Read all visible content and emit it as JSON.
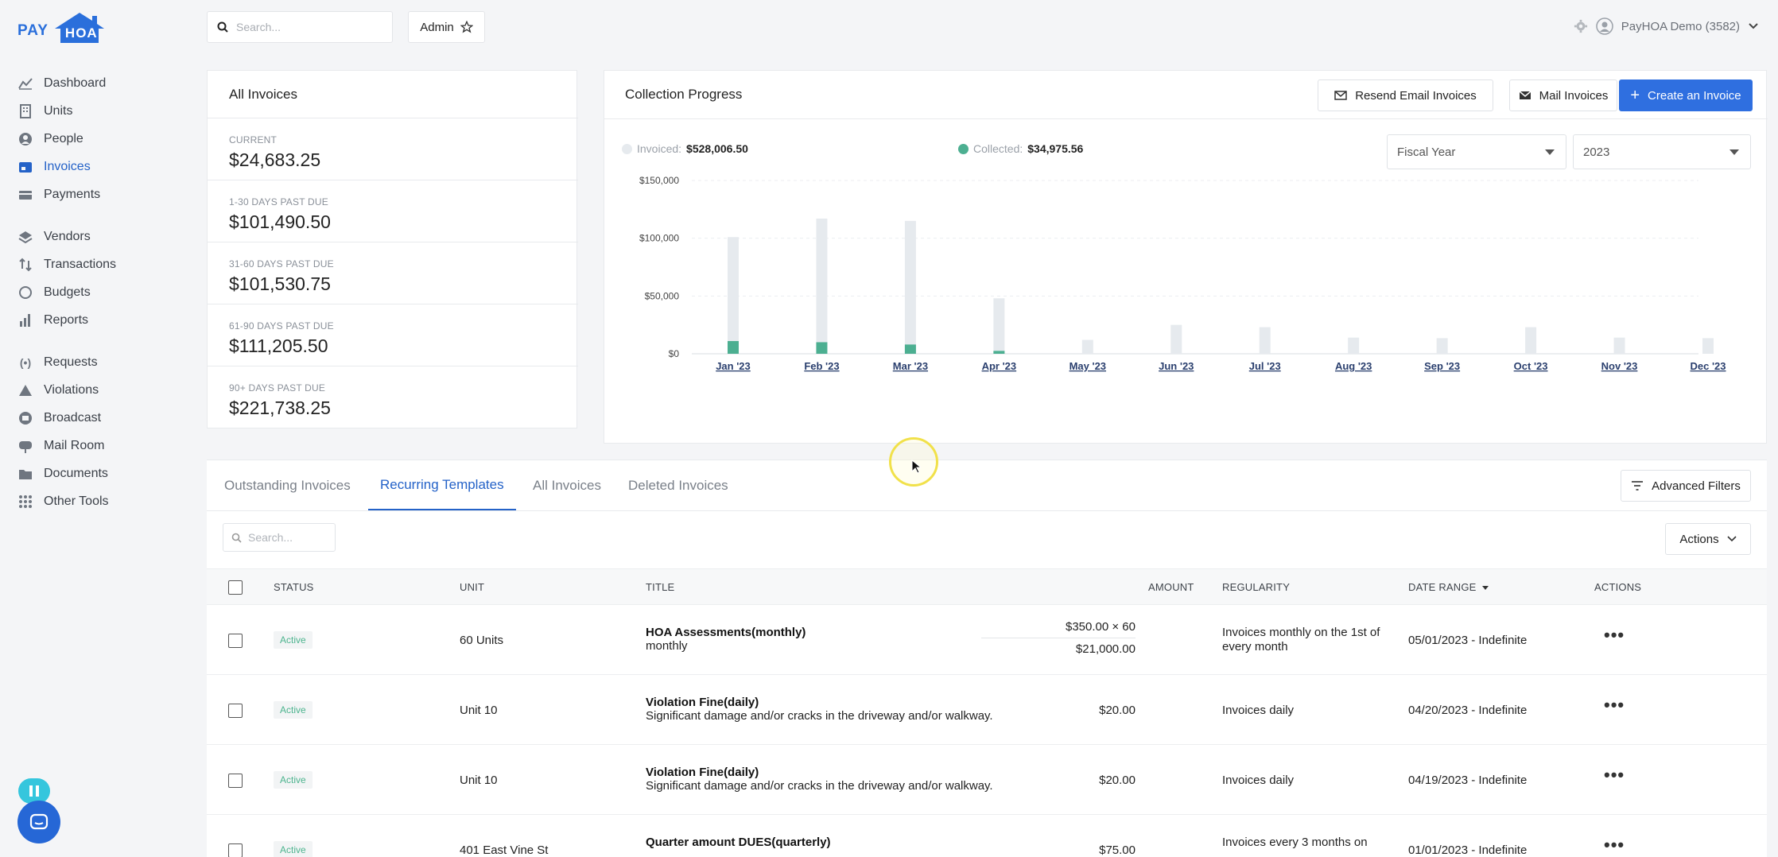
{
  "brand": {
    "pay": "PAY",
    "hoa": "HOA",
    "color": "#2a6fdb"
  },
  "sidebar": {
    "items": [
      {
        "label": "Dashboard",
        "icon": "dashboard-icon"
      },
      {
        "label": "Units",
        "icon": "building-icon"
      },
      {
        "label": "People",
        "icon": "person-icon"
      },
      {
        "label": "Invoices",
        "icon": "invoice-icon",
        "active": true
      },
      {
        "label": "Payments",
        "icon": "payments-icon"
      },
      {
        "label": "Vendors",
        "icon": "vendors-icon"
      },
      {
        "label": "Transactions",
        "icon": "transactions-icon"
      },
      {
        "label": "Budgets",
        "icon": "budgets-icon"
      },
      {
        "label": "Reports",
        "icon": "reports-icon"
      },
      {
        "label": "Requests",
        "icon": "requests-icon"
      },
      {
        "label": "Violations",
        "icon": "warning-icon"
      },
      {
        "label": "Broadcast",
        "icon": "broadcast-icon"
      },
      {
        "label": "Mail Room",
        "icon": "mailbox-icon"
      },
      {
        "label": "Documents",
        "icon": "folder-icon"
      },
      {
        "label": "Other Tools",
        "icon": "grid-icon"
      }
    ]
  },
  "topbar": {
    "search_placeholder": "Search...",
    "admin_label": "Admin",
    "account_label": "PayHOA Demo (3582)"
  },
  "all_invoices": {
    "title": "All Invoices",
    "rows": [
      {
        "label": "CURRENT",
        "value": "$24,683.25"
      },
      {
        "label": "1-30 DAYS PAST DUE",
        "value": "$101,490.50"
      },
      {
        "label": "31-60 DAYS PAST DUE",
        "value": "$101,530.75"
      },
      {
        "label": "61-90 DAYS PAST DUE",
        "value": "$111,205.50"
      },
      {
        "label": "90+ DAYS PAST DUE",
        "value": "$221,738.25"
      }
    ]
  },
  "collection": {
    "title": "Collection Progress",
    "resend_label": "Resend Email Invoices",
    "mail_label": "Mail Invoices",
    "create_label": "Create an Invoice",
    "invoiced_label": "Invoiced:",
    "invoiced_value": "$528,006.50",
    "collected_label": "Collected:",
    "collected_value": "$34,975.56",
    "period_select": "Fiscal Year",
    "year_select": "2023",
    "colors": {
      "invoiced": "#e6eaee",
      "collected": "#4caf91",
      "accent": "#2f6fe0"
    }
  },
  "chart_data": {
    "type": "bar",
    "categories": [
      "Jan '23",
      "Feb '23",
      "Mar '23",
      "Apr '23",
      "May '23",
      "Jun '23",
      "Jul '23",
      "Aug '23",
      "Sep '23",
      "Oct '23",
      "Nov '23",
      "Dec '23"
    ],
    "series": [
      {
        "name": "Invoiced",
        "values": [
          101000,
          117000,
          115000,
          48000,
          12000,
          25000,
          23000,
          14000,
          13500,
          23000,
          14000,
          13500
        ]
      },
      {
        "name": "Collected",
        "values": [
          11000,
          10000,
          8000,
          2500,
          0,
          0,
          0,
          0,
          0,
          0,
          0,
          0
        ]
      }
    ],
    "yticks": [
      "$150,000",
      "$100,000",
      "$50,000",
      "$0"
    ],
    "ylim": [
      0,
      150000
    ],
    "grid": true,
    "legend": "top-left"
  },
  "tabs": [
    {
      "label": "Outstanding Invoices"
    },
    {
      "label": "Recurring Templates",
      "active": true
    },
    {
      "label": "All Invoices"
    },
    {
      "label": "Deleted Invoices"
    }
  ],
  "advanced_filters_label": "Advanced Filters",
  "table": {
    "search_placeholder": "Search...",
    "actions_label": "Actions",
    "headers": {
      "status": "STATUS",
      "unit": "UNIT",
      "title": "TITLE",
      "amount": "AMOUNT",
      "regularity": "REGULARITY",
      "date_range": "DATE RANGE",
      "actions": "ACTIONS"
    },
    "rows": [
      {
        "status": "Active",
        "unit": "60 Units",
        "title": "HOA Assessments(monthly)",
        "subtitle": "monthly",
        "amount": "$350.00 × 60",
        "amount_total": "$21,000.00",
        "regularity": "Invoices monthly on the 1st of every month",
        "date_range": "05/01/2023 - Indefinite"
      },
      {
        "status": "Active",
        "unit": "Unit 10",
        "title": "Violation Fine(daily)",
        "subtitle": "Significant damage and/or cracks in the driveway and/or walkway.",
        "amount": "$20.00",
        "regularity": "Invoices daily",
        "date_range": "04/20/2023 - Indefinite"
      },
      {
        "status": "Active",
        "unit": "Unit 10",
        "title": "Violation Fine(daily)",
        "subtitle": "Significant damage and/or cracks in the driveway and/or walkway.",
        "amount": "$20.00",
        "regularity": "Invoices daily",
        "date_range": "04/19/2023 - Indefinite"
      },
      {
        "status": "Active",
        "unit": "401 East Vine St",
        "title": "Quarter amount DUES(quarterly)",
        "subtitle": "",
        "amount": "$75.00",
        "regularity": "Invoices every 3 months on",
        "date_range": "01/01/2023 - Indefinite"
      }
    ]
  }
}
